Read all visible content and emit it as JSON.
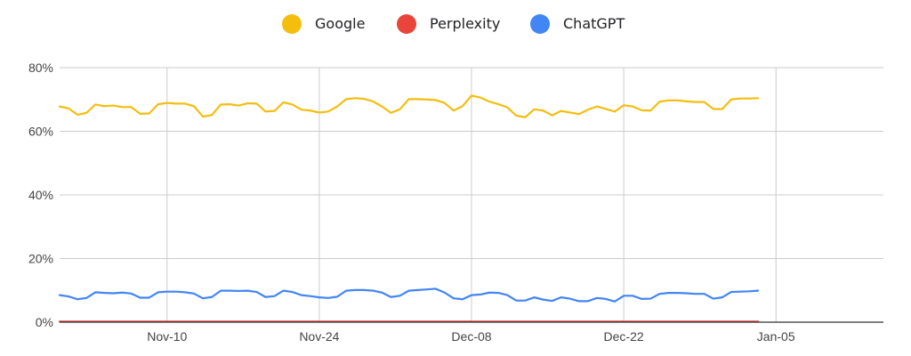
{
  "chart_data": {
    "type": "line",
    "title": "",
    "xlabel": "",
    "ylabel": "",
    "ylim": [
      0,
      80
    ],
    "y_ticks": [
      0,
      20,
      40,
      60,
      80
    ],
    "y_tick_labels": [
      "0%",
      "20%",
      "40%",
      "60%",
      "80%"
    ],
    "x_range": [
      0,
      92
    ],
    "x_ticks": [
      {
        "label": "Nov-10",
        "index": 12
      },
      {
        "label": "Nov-24",
        "index": 29
      },
      {
        "label": "Dec-08",
        "index": 46
      },
      {
        "label": "Dec-22",
        "index": 63
      },
      {
        "label": "Jan-05",
        "index": 80
      }
    ],
    "grid": true,
    "legend_position": "top-center",
    "series": [
      {
        "name": "Google",
        "color": "#F4BE0F",
        "values": [
          67.8,
          67.2,
          65.2,
          65.8,
          68.4,
          67.9,
          68.1,
          67.6,
          67.6,
          65.5,
          65.6,
          68.5,
          68.9,
          68.7,
          68.7,
          67.9,
          64.6,
          65.1,
          68.4,
          68.5,
          68.1,
          68.8,
          68.7,
          66.2,
          66.4,
          69.1,
          68.4,
          66.8,
          66.5,
          65.9,
          66.2,
          67.8,
          70.1,
          70.4,
          70.2,
          69.4,
          67.8,
          65.8,
          66.9,
          70.1,
          70.1,
          70.0,
          69.8,
          68.9,
          66.5,
          67.9,
          71.2,
          70.6,
          69.3,
          68.5,
          67.5,
          64.9,
          64.4,
          66.9,
          66.5,
          65.0,
          66.4,
          65.9,
          65.4,
          66.8,
          67.8,
          67.0,
          66.2,
          68.2,
          67.8,
          66.6,
          66.5,
          69.3,
          69.7,
          69.7,
          69.4,
          69.2,
          69.2,
          67.0,
          67.0,
          70.0,
          70.3,
          70.3,
          70.4
        ]
      },
      {
        "name": "Perplexity",
        "color": "#E8453C",
        "values": [
          0.2,
          0.2,
          0.2,
          0.2,
          0.2,
          0.2,
          0.2,
          0.2,
          0.2,
          0.2,
          0.2,
          0.2,
          0.2,
          0.2,
          0.2,
          0.2,
          0.2,
          0.2,
          0.2,
          0.2,
          0.2,
          0.2,
          0.2,
          0.2,
          0.2,
          0.2,
          0.2,
          0.2,
          0.2,
          0.2,
          0.2,
          0.2,
          0.2,
          0.2,
          0.2,
          0.2,
          0.2,
          0.2,
          0.2,
          0.2,
          0.2,
          0.2,
          0.2,
          0.2,
          0.2,
          0.2,
          0.2,
          0.2,
          0.2,
          0.2,
          0.2,
          0.2,
          0.2,
          0.2,
          0.2,
          0.2,
          0.2,
          0.2,
          0.2,
          0.2,
          0.2,
          0.2,
          0.2,
          0.2,
          0.2,
          0.2,
          0.2,
          0.2,
          0.2,
          0.2,
          0.2,
          0.2,
          0.2,
          0.2,
          0.2,
          0.2,
          0.2,
          0.2,
          0.2
        ]
      },
      {
        "name": "ChatGPT",
        "color": "#4285F4",
        "values": [
          8.5,
          8.1,
          7.2,
          7.6,
          9.4,
          9.2,
          9.1,
          9.3,
          9.0,
          7.7,
          7.7,
          9.4,
          9.6,
          9.6,
          9.4,
          9.0,
          7.5,
          7.9,
          9.9,
          9.9,
          9.8,
          9.9,
          9.5,
          7.9,
          8.2,
          9.9,
          9.5,
          8.5,
          8.2,
          7.8,
          7.6,
          8.0,
          9.9,
          10.1,
          10.1,
          9.9,
          9.3,
          7.9,
          8.3,
          9.9,
          10.1,
          10.3,
          10.5,
          9.3,
          7.5,
          7.2,
          8.5,
          8.7,
          9.3,
          9.2,
          8.5,
          6.8,
          6.8,
          7.8,
          7.1,
          6.7,
          7.8,
          7.4,
          6.6,
          6.6,
          7.6,
          7.3,
          6.5,
          8.3,
          8.3,
          7.3,
          7.4,
          8.9,
          9.2,
          9.2,
          9.1,
          8.9,
          8.9,
          7.4,
          7.8,
          9.5,
          9.6,
          9.7,
          9.9
        ]
      }
    ]
  }
}
